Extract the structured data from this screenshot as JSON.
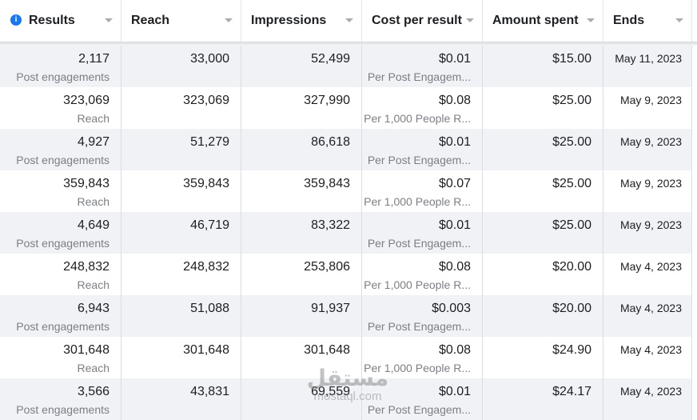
{
  "header": {
    "columns": [
      "Results",
      "Reach",
      "Impressions",
      "Cost per result",
      "Amount spent",
      "Ends"
    ]
  },
  "table": {
    "rows": [
      {
        "results": "2,117",
        "results_label": "Post engagements",
        "reach": "33,000",
        "impressions": "52,499",
        "cost": "$0.01",
        "cost_label": "Per Post Engagem...",
        "amount": "$15.00",
        "ends": "May 11, 2023"
      },
      {
        "results": "323,069",
        "results_label": "Reach",
        "reach": "323,069",
        "impressions": "327,990",
        "cost": "$0.08",
        "cost_label": "Per 1,000 People R...",
        "amount": "$25.00",
        "ends": "May 9, 2023"
      },
      {
        "results": "4,927",
        "results_label": "Post engagements",
        "reach": "51,279",
        "impressions": "86,618",
        "cost": "$0.01",
        "cost_label": "Per Post Engagem...",
        "amount": "$25.00",
        "ends": "May 9, 2023"
      },
      {
        "results": "359,843",
        "results_label": "Reach",
        "reach": "359,843",
        "impressions": "359,843",
        "cost": "$0.07",
        "cost_label": "Per 1,000 People R...",
        "amount": "$25.00",
        "ends": "May 9, 2023"
      },
      {
        "results": "4,649",
        "results_label": "Post engagements",
        "reach": "46,719",
        "impressions": "83,322",
        "cost": "$0.01",
        "cost_label": "Per Post Engagem...",
        "amount": "$25.00",
        "ends": "May 9, 2023"
      },
      {
        "results": "248,832",
        "results_label": "Reach",
        "reach": "248,832",
        "impressions": "253,806",
        "cost": "$0.08",
        "cost_label": "Per 1,000 People R...",
        "amount": "$20.00",
        "ends": "May 4, 2023"
      },
      {
        "results": "6,943",
        "results_label": "Post engagements",
        "reach": "51,088",
        "impressions": "91,937",
        "cost": "$0.003",
        "cost_label": "Per Post Engagem...",
        "amount": "$20.00",
        "ends": "May 4, 2023"
      },
      {
        "results": "301,648",
        "results_label": "Reach",
        "reach": "301,648",
        "impressions": "301,648",
        "cost": "$0.08",
        "cost_label": "Per 1,000 People R...",
        "amount": "$24.90",
        "ends": "May 4, 2023"
      },
      {
        "results": "3,566",
        "results_label": "Post engagements",
        "reach": "43,831",
        "impressions": "69,559",
        "cost": "$0.01",
        "cost_label": "Per Post Engagem...",
        "amount": "$24.17",
        "ends": "May 4, 2023"
      }
    ]
  },
  "watermark": {
    "arabic": "مستقل",
    "latin": "mostaql.com"
  }
}
